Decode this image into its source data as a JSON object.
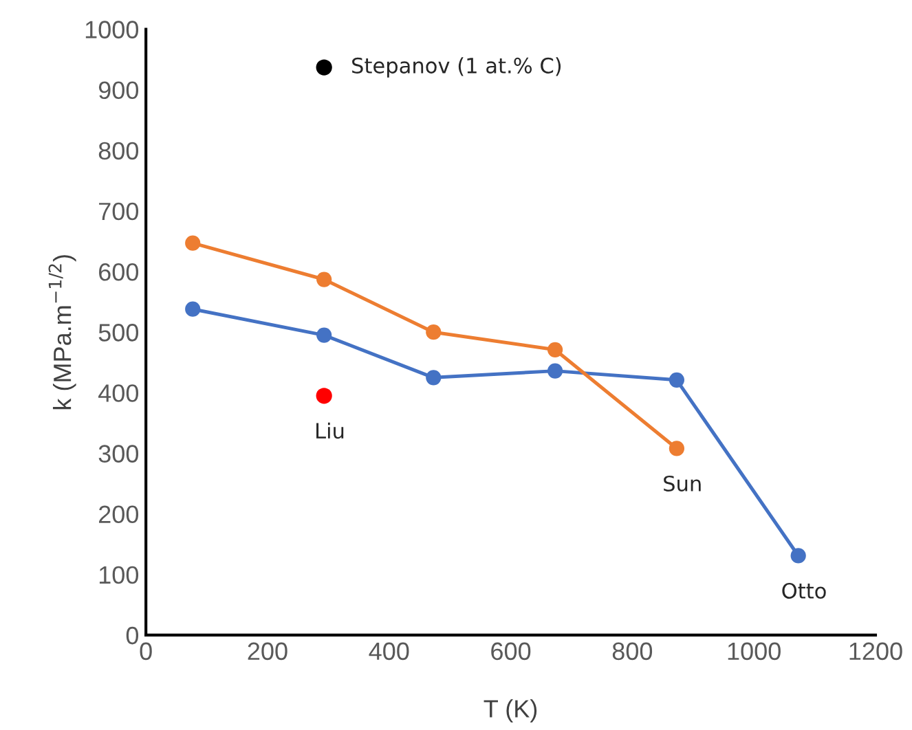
{
  "chart_data": {
    "type": "line",
    "xlabel": "T (K)",
    "ylabel": "k (MPa.m$^{−1/2}$)",
    "xlim": [
      0,
      1200
    ],
    "xticks": [
      0,
      200,
      400,
      600,
      800,
      1000,
      1200
    ],
    "ylim": [
      0,
      1000
    ],
    "yticks": [
      0,
      100,
      200,
      300,
      400,
      500,
      600,
      700,
      800,
      900,
      1000
    ],
    "grid": false,
    "legend": false,
    "marker": "circle",
    "line_style": "solid",
    "series": [
      {
        "name": "Otto",
        "color": "#4472c4",
        "x": [
          77,
          293,
          473,
          673,
          873,
          1073
        ],
        "values": [
          538,
          495,
          425,
          436,
          421,
          131
        ]
      },
      {
        "name": "Sun",
        "color": "#ed7d31",
        "x": [
          77,
          293,
          473,
          673,
          873
        ],
        "values": [
          647,
          587,
          500,
          471,
          308
        ]
      },
      {
        "name": "Liu",
        "type": "scatter",
        "color": "#ff0000",
        "x": [
          293
        ],
        "values": [
          395
        ]
      },
      {
        "name": "Stepanov (1 at.% C)",
        "type": "scatter",
        "color": "#000000",
        "x": [
          293
        ],
        "values": [
          937
        ]
      }
    ]
  }
}
